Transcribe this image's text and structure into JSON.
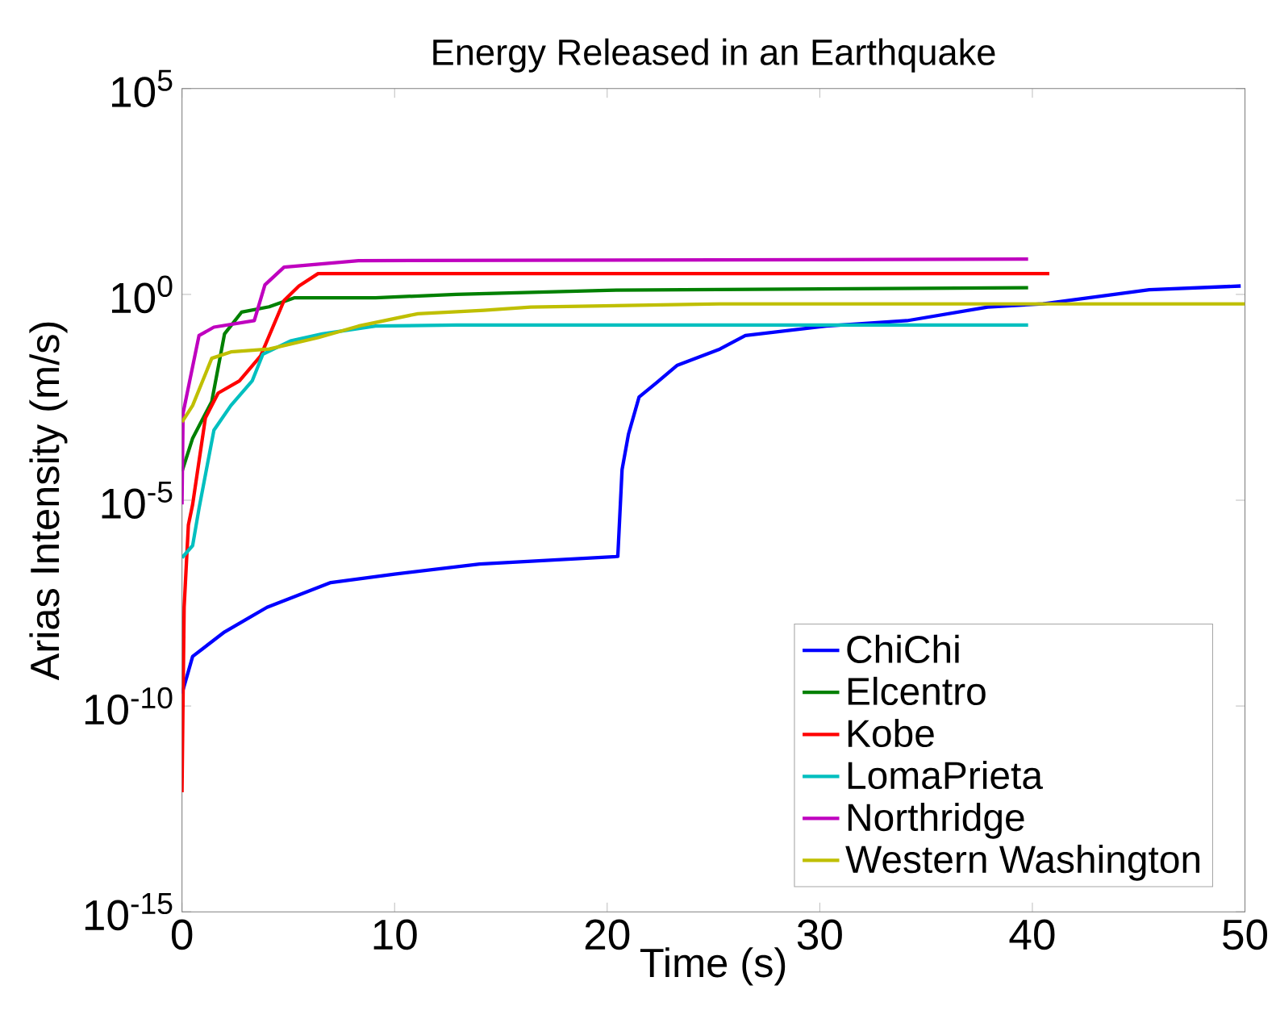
{
  "chart_data": {
    "type": "line",
    "title": "Energy Released in an Earthquake",
    "xlabel": "Time (s)",
    "ylabel": "Arias Intensity (m/s)",
    "log": "y",
    "legend": "bottom right",
    "xlim": [
      0,
      50
    ],
    "xticks": [
      0,
      10,
      20,
      30,
      40,
      50
    ],
    "ylim": [
      1e-15,
      100000.0
    ],
    "yticks": [
      {
        "value": 1e-15,
        "label": "10$^{-15}$"
      },
      {
        "value": 1e-10,
        "label": "10$^{-10}$"
      },
      {
        "value": 1e-05,
        "label": "10$^{-5}$"
      },
      {
        "value": 1,
        "label": "10$^{0}$"
      },
      {
        "value": 100000.0,
        "label": "10$^{5}$"
      }
    ],
    "series": [
      {
        "name": "ChiChi",
        "color": "#0000ff",
        "x": [
          0,
          0.5,
          2,
          4,
          7,
          10,
          14,
          20.5,
          20.7,
          21.0,
          21.5,
          22.3,
          23.3,
          25.3,
          26.5,
          30.3,
          34.1,
          37.9,
          40.5,
          45.5,
          49.8
        ],
        "values": [
          2e-10,
          1.6e-09,
          6.3e-09,
          2.5e-08,
          1e-07,
          1.6e-07,
          2.8e-07,
          4.3e-07,
          5.5e-05,
          0.0004,
          0.0032,
          0.007,
          0.019,
          0.047,
          0.1,
          0.17,
          0.23,
          0.49,
          0.59,
          1.3,
          1.6
        ]
      },
      {
        "name": "Elcentro",
        "color": "#008000",
        "x": [
          0,
          0.5,
          1.4,
          2.0,
          2.8,
          4.1,
          5.3,
          9.1,
          12.9,
          20,
          39.8
        ],
        "values": [
          5e-05,
          0.00032,
          0.0025,
          0.11,
          0.37,
          0.5,
          0.83,
          0.83,
          1.0,
          1.26,
          1.45
        ]
      },
      {
        "name": "Kobe",
        "color": "#ff0000",
        "x": [
          0,
          0.05,
          0.1,
          0.3,
          0.5,
          1.1,
          1.7,
          2.7,
          3.7,
          4.8,
          5.5,
          6.4,
          40.8
        ],
        "values": [
          8e-13,
          1.6e-10,
          2.5e-08,
          2.5e-06,
          7.9e-06,
          0.001,
          0.004,
          0.0079,
          0.032,
          0.71,
          1.6,
          3.2,
          3.2
        ]
      },
      {
        "name": "LomaPrieta",
        "color": "#00bfbf",
        "x": [
          0,
          0.5,
          0.8,
          1.5,
          2.3,
          3.3,
          3.8,
          5.1,
          6.6,
          9.1,
          12.9,
          39.8
        ],
        "values": [
          4e-07,
          7.9e-07,
          6.3e-06,
          0.0005,
          0.002,
          0.0079,
          0.035,
          0.074,
          0.11,
          0.17,
          0.18,
          0.18
        ]
      },
      {
        "name": "Northridge",
        "color": "#bf00bf",
        "x": [
          0,
          0.05,
          0.8,
          1.5,
          3.4,
          3.9,
          4.8,
          8.3,
          39.8
        ],
        "values": [
          7.9e-06,
          0.0013,
          0.1,
          0.16,
          0.23,
          1.7,
          4.6,
          6.6,
          7.2
        ]
      },
      {
        "name": "Western Washington",
        "color": "#bfbf00",
        "x": [
          0,
          0.5,
          1.4,
          2.3,
          4.1,
          6.4,
          8.3,
          11.1,
          14.2,
          16.4,
          25.3,
          50
        ],
        "values": [
          0.00079,
          0.002,
          0.028,
          0.04,
          0.047,
          0.089,
          0.17,
          0.34,
          0.41,
          0.49,
          0.59,
          0.59
        ]
      }
    ]
  }
}
